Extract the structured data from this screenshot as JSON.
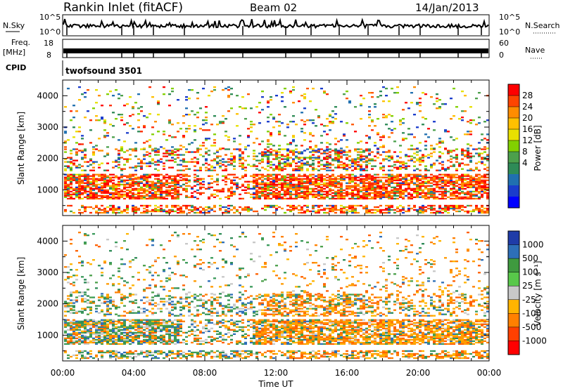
{
  "header": {
    "title": "Rankin Inlet (fitACF)",
    "beam": "Beam 02",
    "date": "14/Jan/2013"
  },
  "top_panels": {
    "nsky_label": "N.Sky",
    "nsky_ticks": [
      "10^5",
      "10^0"
    ],
    "nsearch_label": "N.Search",
    "nsearch_ticks": [
      "10^5",
      "10^0"
    ],
    "freq_label": "Freq.",
    "freq_unit": "[MHz]",
    "freq_ticks": [
      "18",
      "8"
    ],
    "nave_label": "Nave",
    "nave_ticks": [
      "60",
      "0"
    ],
    "cpid_label": "CPID",
    "cpid_value": "twofsound 3501"
  },
  "chart_data": [
    {
      "type": "heatmap",
      "name": "power",
      "ylabel": "Slant Range [km]",
      "y_ticks": [
        "4000",
        "3000",
        "2000",
        "1000"
      ],
      "y_tick_values": [
        4000,
        3000,
        2000,
        1000
      ],
      "ylim": [
        180,
        4500
      ],
      "colorbar_label": "Power [dB]",
      "colorbar_ticks": [
        "28",
        "24",
        "20",
        "16",
        "12",
        "8",
        "4"
      ],
      "colorbar_tick_values": [
        28,
        24,
        20,
        16,
        12,
        8,
        4
      ],
      "colorbar_colors": [
        "#ff0000",
        "#ff4400",
        "#ff8c00",
        "#ffc000",
        "#e8e000",
        "#82d000",
        "#4ca04c",
        "#2e8b57",
        "#2070b0",
        "#1a3ccc",
        "#0000ff"
      ]
    },
    {
      "type": "heatmap",
      "name": "velocity",
      "ylabel": "Slant Range [km]",
      "y_ticks": [
        "4000",
        "3000",
        "2000",
        "1000"
      ],
      "y_tick_values": [
        4000,
        3000,
        2000,
        1000
      ],
      "ylim": [
        180,
        4500
      ],
      "colorbar_label": "Velocity [m s⁻¹]",
      "colorbar_ticks": [
        "1000",
        "500",
        "100",
        "25",
        "-25",
        "-100",
        "-500",
        "-1000"
      ],
      "colorbar_colors": [
        "#1f3ca8",
        "#2d6fb8",
        "#3f9a3f",
        "#58c84a",
        "#c8c8c8",
        "#ffb400",
        "#ff8000",
        "#ff4000",
        "#ff0000"
      ]
    }
  ],
  "x_axis": {
    "label": "Time UT",
    "ticks": [
      "00:00",
      "04:00",
      "08:00",
      "12:00",
      "16:00",
      "20:00",
      "00:00"
    ]
  }
}
